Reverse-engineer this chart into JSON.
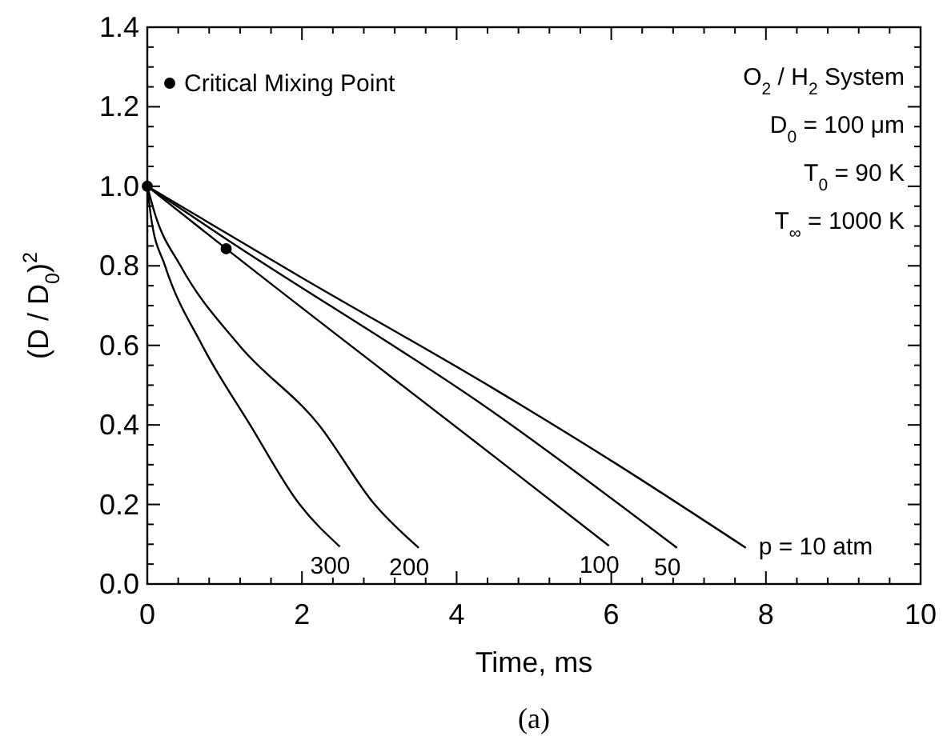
{
  "chart_data": {
    "type": "line",
    "subtitle": "(a)",
    "xlabel": "Time, ms",
    "ylabel": "(D / D$_{0}$)$^{2}$",
    "xlim": [
      0,
      10
    ],
    "xticks": [
      0,
      2,
      4,
      6,
      8,
      10
    ],
    "ylim": [
      0,
      1.4
    ],
    "yticks": [
      {
        "value": 0,
        "label": "0.0"
      },
      {
        "value": 0.2,
        "label": "0.2"
      },
      {
        "value": 0.4,
        "label": "0.4"
      },
      {
        "value": 0.6,
        "label": "0.6"
      },
      {
        "value": 0.8,
        "label": "0.8"
      },
      {
        "value": 1,
        "label": "1.0"
      },
      {
        "value": 1.2,
        "label": "1.2"
      },
      {
        "value": 1.4,
        "label": "1.4"
      }
    ],
    "grid": false,
    "legend": "top left",
    "line_style": "solid",
    "annotations": [
      "O$_{2}$ / H$_{2}$ System",
      "D$_{0}$ = 100 μm",
      "T$_{0}$ = 90 K",
      "T$_{∞}$ = 1000 K"
    ],
    "series": [
      {
        "name": "p = 10 atm",
        "color": "#000000",
        "x": [
          0,
          2,
          4.49,
          6,
          7.74
        ],
        "values": [
          1,
          0.77,
          0.49,
          0.31,
          0.091
        ]
      },
      {
        "name": "50",
        "color": "#000000",
        "x": [
          0,
          1,
          4.49,
          6.85
        ],
        "values": [
          1,
          0.87,
          0.43,
          0.091
        ]
      },
      {
        "name": "100",
        "color": "#000000",
        "x": [
          0,
          1.02,
          4.49,
          5.97
        ],
        "values": [
          1,
          0.843,
          0.32,
          0.096
        ]
      },
      {
        "name": "200",
        "color": "#000000",
        "x": [
          0,
          0.1,
          0.43,
          1.19,
          2.22,
          2.94,
          3.51
        ],
        "values": [
          1,
          0.93,
          0.8,
          0.6,
          0.4,
          0.2,
          0.091
        ]
      },
      {
        "name": "300",
        "color": "#000000",
        "x": [
          0,
          0.05,
          0.23,
          0.71,
          1.33,
          1.97,
          2.49
        ],
        "values": [
          1,
          0.92,
          0.8,
          0.6,
          0.4,
          0.2,
          0.094
        ]
      },
      {
        "name": "Critical Mixing Point",
        "type": "scatter",
        "marker": "circle",
        "color": "#000000",
        "x": [
          0,
          1.02
        ],
        "values": [
          1,
          0.843
        ]
      }
    ]
  }
}
